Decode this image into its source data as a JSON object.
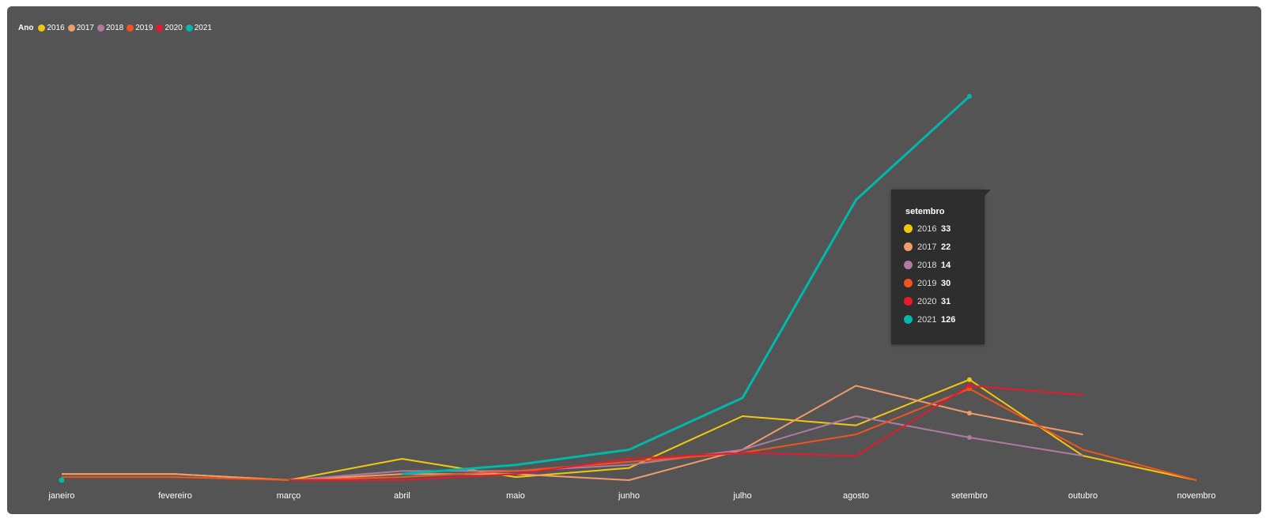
{
  "legend": {
    "title": "Ano",
    "items": [
      {
        "label": "2016",
        "color": "#f2c80f"
      },
      {
        "label": "2017",
        "color": "#f29b6b"
      },
      {
        "label": "2018",
        "color": "#b07aa1"
      },
      {
        "label": "2019",
        "color": "#f2541c"
      },
      {
        "label": "2020",
        "color": "#e8192c"
      },
      {
        "label": "2021",
        "color": "#01b8aa"
      }
    ]
  },
  "tooltip": {
    "title": "setembro",
    "rows": [
      {
        "year": "2016",
        "value": "33",
        "color": "#f2c80f"
      },
      {
        "year": "2017",
        "value": "22",
        "color": "#f29b6b"
      },
      {
        "year": "2018",
        "value": "14",
        "color": "#b07aa1"
      },
      {
        "year": "2019",
        "value": "30",
        "color": "#f2541c"
      },
      {
        "year": "2020",
        "value": "31",
        "color": "#e8192c"
      },
      {
        "year": "2021",
        "value": "126",
        "color": "#01b8aa"
      }
    ]
  },
  "chart_data": {
    "type": "line",
    "categories": [
      "janeiro",
      "fevereiro",
      "março",
      "abril",
      "maio",
      "junho",
      "julho",
      "agosto",
      "setembro",
      "outubro",
      "novembro"
    ],
    "series": [
      {
        "name": "2016",
        "color": "#f2c80f",
        "values": [
          2,
          2,
          0,
          7,
          1,
          4,
          21,
          18,
          33,
          8,
          0
        ]
      },
      {
        "name": "2017",
        "color": "#f29b6b",
        "values": [
          2,
          2,
          0,
          2,
          2,
          0,
          10,
          31,
          22,
          15,
          null
        ]
      },
      {
        "name": "2018",
        "color": "#b07aa1",
        "values": [
          null,
          null,
          0,
          3,
          3,
          5,
          10,
          21,
          14,
          8,
          null
        ]
      },
      {
        "name": "2019",
        "color": "#f2541c",
        "values": [
          1,
          1,
          0,
          1,
          3,
          6,
          9,
          15,
          30,
          10,
          0
        ]
      },
      {
        "name": "2020",
        "color": "#e8192c",
        "values": [
          null,
          null,
          0,
          0,
          2,
          7,
          9,
          8,
          31,
          28,
          null
        ]
      },
      {
        "name": "2021",
        "color": "#01b8aa",
        "values": [
          0,
          null,
          null,
          2,
          5,
          10,
          27,
          92,
          126,
          null,
          null
        ]
      }
    ],
    "ylim": [
      0,
      140
    ],
    "grid": false,
    "legend_position": "top-left"
  }
}
